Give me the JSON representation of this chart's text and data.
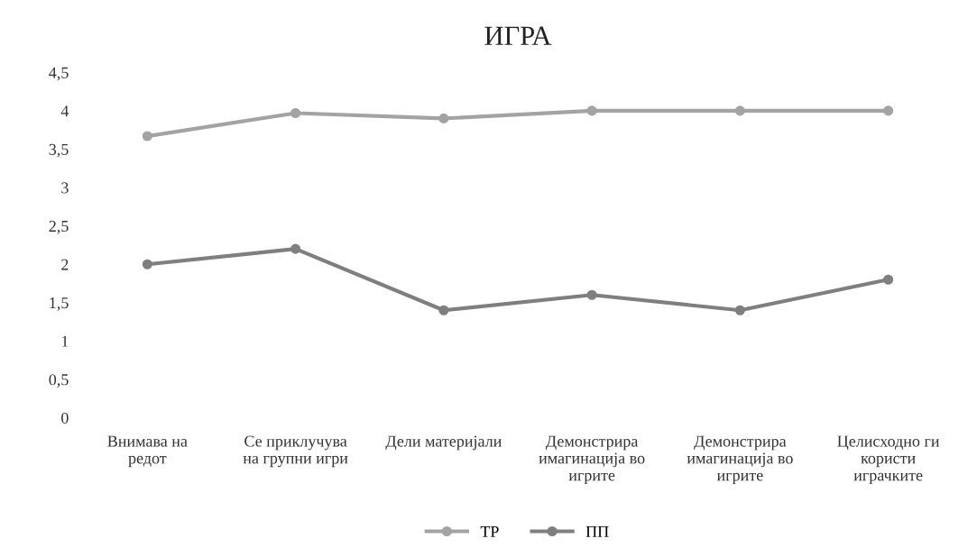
{
  "chart_data": {
    "type": "line",
    "title": "ИГРА",
    "categories": [
      "Внимава на\nредот",
      "Се приклучува\nна групни игри",
      "Дели материјали",
      "Демонстрира\nимагинација во\nигрите",
      "Демонстрира\nимагинација во\nигрите",
      "Целисходно ги\nкористи\nиграчките"
    ],
    "series": [
      {
        "name": "ТР",
        "color": "#a3a3a3",
        "values": [
          3.67,
          3.97,
          3.9,
          4.0,
          4.0,
          4.0
        ]
      },
      {
        "name": "ПП",
        "color": "#7f7f7f",
        "values": [
          2.0,
          2.2,
          1.4,
          1.6,
          1.4,
          1.8
        ]
      }
    ],
    "ylim": [
      0,
      4.5
    ],
    "yticks": [
      0,
      {
        "value": 0.5,
        "label": "0,5"
      },
      1,
      {
        "value": 1.5,
        "label": "1,5"
      },
      2,
      {
        "value": 2.5,
        "label": "2,5"
      },
      3,
      {
        "value": 3.5,
        "label": "3,5"
      },
      4,
      {
        "value": 4.5,
        "label": "4,5"
      }
    ],
    "grid": false,
    "legend": "bottom",
    "marker": "circle",
    "line_style": "solid"
  }
}
